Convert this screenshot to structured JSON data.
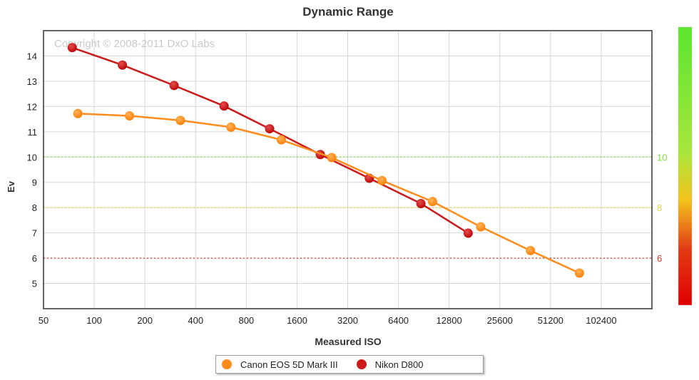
{
  "chart_data": {
    "type": "line",
    "title": "Dynamic Range",
    "xlabel": "Measured ISO",
    "ylabel": "Ev",
    "x_scale": "log2",
    "xlim": [
      50,
      204800
    ],
    "ylim": [
      4,
      15
    ],
    "x_ticks": [
      "50",
      "100",
      "200",
      "400",
      "800",
      "1600",
      "3200",
      "6400",
      "12800",
      "25600",
      "51200",
      "102400"
    ],
    "y_ticks": [
      "5",
      "6",
      "7",
      "8",
      "9",
      "10",
      "11",
      "12",
      "13",
      "14"
    ],
    "grid": true,
    "watermark": "Copyright © 2008-2011 DxO Labs",
    "reference_lines": [
      {
        "y": 10,
        "label": "10",
        "color": "#7fe040"
      },
      {
        "y": 8,
        "label": "8",
        "color": "#e8d34a"
      },
      {
        "y": 6,
        "label": "6",
        "color": "#d23a2a"
      }
    ],
    "color_scale": {
      "top": "#66ee33",
      "mid": "#f0c020",
      "bottom": "#e00000"
    },
    "legend_placement": "bottom-center",
    "series": [
      {
        "name": "Canon EOS 5D Mark III",
        "color": "#ff8c1a",
        "x": [
          80,
          162,
          325,
          648,
          1290,
          2570,
          5110,
          10200,
          19700,
          38900,
          76000
        ],
        "y": [
          11.72,
          11.63,
          11.45,
          11.18,
          10.68,
          9.98,
          9.07,
          8.24,
          7.24,
          6.3,
          5.41
        ]
      },
      {
        "name": "Nikon D800",
        "color": "#cc1a1a",
        "x": [
          74,
          147,
          298,
          590,
          1100,
          2200,
          4300,
          8700,
          16600
        ],
        "y": [
          14.33,
          13.64,
          12.83,
          12.02,
          11.12,
          10.1,
          9.16,
          8.16,
          6.99
        ]
      }
    ]
  }
}
